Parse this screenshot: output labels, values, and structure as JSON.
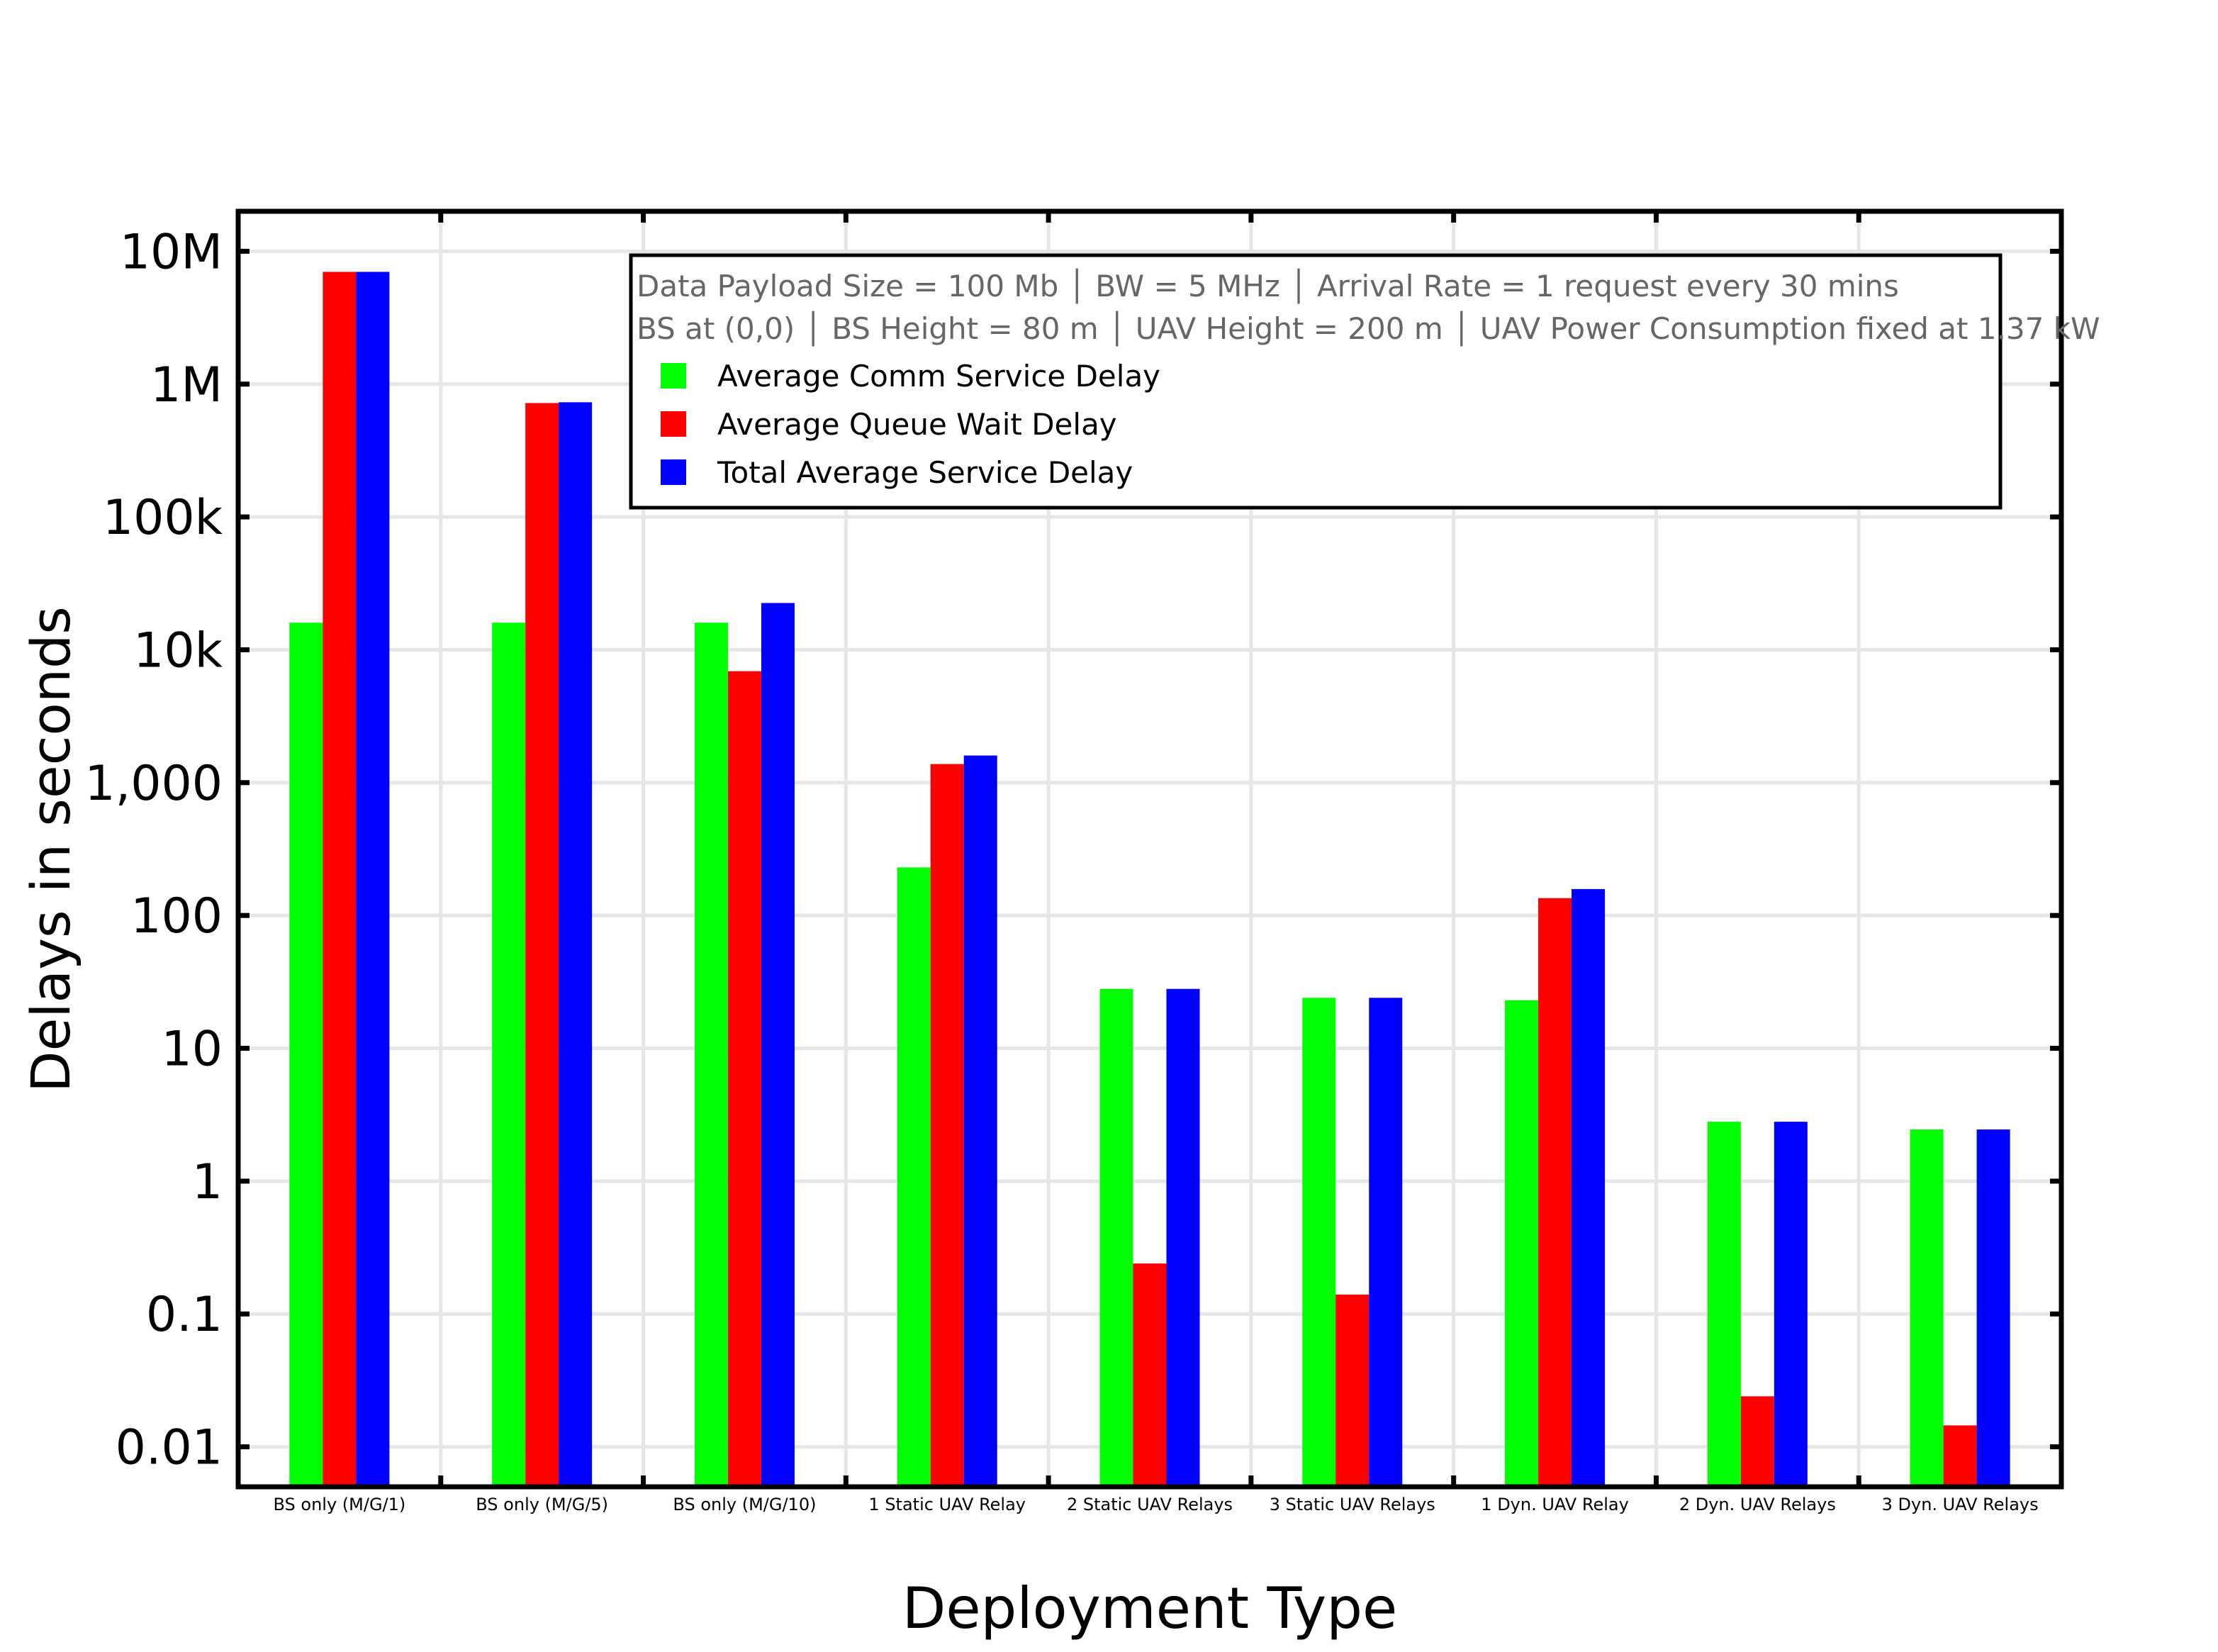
{
  "chart_data": {
    "type": "bar",
    "xlabel": "Deployment Type",
    "ylabel": "Delays in seconds",
    "yscale": "log",
    "ylim": [
      0.005,
      20000000
    ],
    "grid": true,
    "legend_placement": "top-right",
    "categories": [
      "BS only (M/G/1)",
      "BS only (M/G/5)",
      "BS only (M/G/10)",
      "1 Static UAV Relay",
      "2 Static UAV Relays",
      "3 Static UAV Relays",
      "1 Dyn. UAV Relay",
      "2 Dyn. UAV Relays",
      "3 Dyn. UAV Relays"
    ],
    "yticks": [
      {
        "value": 10000000,
        "label": "10M"
      },
      {
        "value": 1000000,
        "label": "1M"
      },
      {
        "value": 100000,
        "label": "100k"
      },
      {
        "value": 10000,
        "label": "10k"
      },
      {
        "value": 1000,
        "label": "1,000"
      },
      {
        "value": 100,
        "label": "100"
      },
      {
        "value": 10,
        "label": "10"
      },
      {
        "value": 1,
        "label": "1"
      },
      {
        "value": 0.1,
        "label": "0.1"
      },
      {
        "value": 0.01,
        "label": "0.01"
      }
    ],
    "annotation_lines": [
      "Data Payload Size = 100 Mb │ BW = 5 MHz │ Arrival Rate = 1 request every 30 mins",
      "BS at (0,0) │ BS Height = 80 m │ UAV Height = 200 m │ UAV Power Consumption fixed at 1.37 kW"
    ],
    "series": [
      {
        "name": "Average Comm Service Delay",
        "color": "#00ff00",
        "values": [
          16000,
          16000,
          16000,
          230,
          28,
          24,
          23,
          2.8,
          2.45
        ]
      },
      {
        "name": "Average Queue Wait Delay",
        "color": "#ff0000",
        "values": [
          7000000,
          720000,
          6900,
          1380,
          0.24,
          0.14,
          135,
          0.024,
          0.0145
        ]
      },
      {
        "name": "Total Average Service Delay",
        "color": "#0000ff",
        "values": [
          7000000,
          730000,
          22500,
          1600,
          28,
          24,
          158,
          2.8,
          2.45
        ]
      }
    ]
  }
}
